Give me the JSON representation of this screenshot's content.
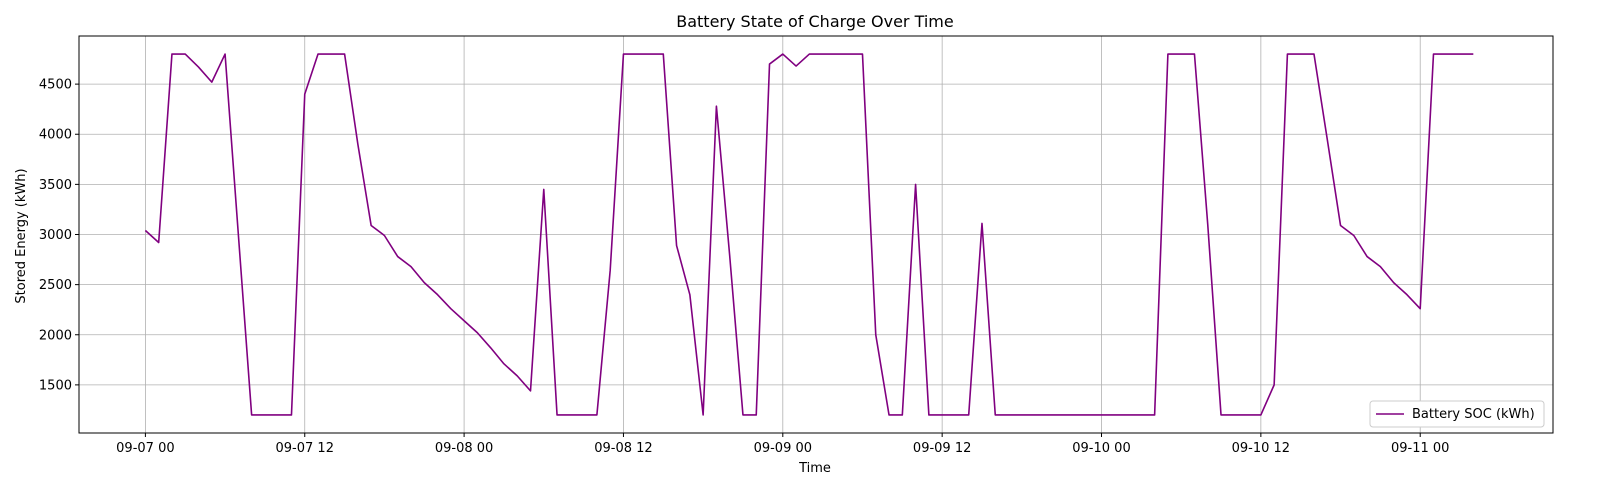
{
  "chart_data": {
    "type": "line",
    "title": "Battery State of Charge Over Time",
    "xlabel": "Time",
    "ylabel": "Stored Energy (kWh)",
    "x_start": "2024-09-07 00:00",
    "x_step_hours": 1,
    "xlim": [
      "2024-09-06 19:00",
      "2024-09-11 10:00"
    ],
    "ylim": [
      1020,
      4980
    ],
    "x_ticks": [
      {
        "label": "09-07 00",
        "hour": 0
      },
      {
        "label": "09-07 12",
        "hour": 12
      },
      {
        "label": "09-08 00",
        "hour": 24
      },
      {
        "label": "09-08 12",
        "hour": 36
      },
      {
        "label": "09-09 00",
        "hour": 48
      },
      {
        "label": "09-09 12",
        "hour": 60
      },
      {
        "label": "09-10 00",
        "hour": 72
      },
      {
        "label": "09-10 12",
        "hour": 84
      },
      {
        "label": "09-11 00",
        "hour": 96
      }
    ],
    "y_ticks": [
      1500,
      2000,
      2500,
      3000,
      3500,
      4000,
      4500
    ],
    "grid": true,
    "legend_position": "bottom-right",
    "series": [
      {
        "name": "Battery SOC (kWh)",
        "color": "#800080",
        "values": [
          3040,
          2920,
          4800,
          4800,
          4670,
          4520,
          4800,
          3000,
          1200,
          1200,
          1200,
          1200,
          4400,
          4800,
          4800,
          4800,
          3900,
          3090,
          2990,
          2780,
          2680,
          2520,
          2400,
          2260,
          2140,
          2020,
          1870,
          1710,
          1590,
          1440,
          3450,
          1200,
          1200,
          1200,
          1200,
          2640,
          4800,
          4800,
          4800,
          4800,
          2890,
          2400,
          1200,
          4280,
          2790,
          1200,
          1200,
          4700,
          4800,
          4680,
          4800,
          4800,
          4800,
          4800,
          4800,
          2000,
          1200,
          1200,
          3500,
          1200,
          1200,
          1200,
          1200,
          3110,
          1200,
          1200,
          1200,
          1200,
          1200,
          1200,
          1200,
          1200,
          1200,
          1200,
          1200,
          1200,
          1200,
          4800,
          4800,
          4800,
          3100,
          1200,
          1200,
          1200,
          1200,
          1500,
          4800,
          4800,
          4800,
          3950,
          3090,
          2990,
          2780,
          2680,
          2520,
          2400,
          2260,
          4800,
          4800,
          4800,
          4800
        ]
      }
    ]
  }
}
